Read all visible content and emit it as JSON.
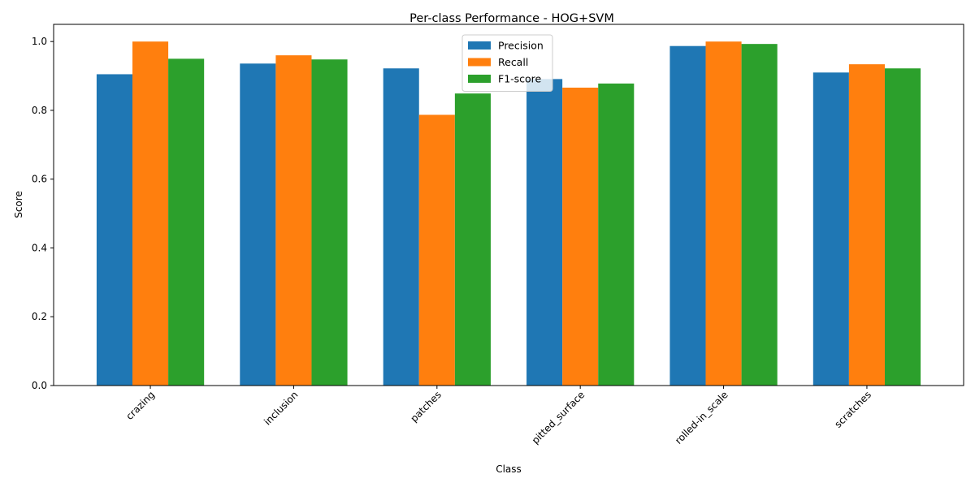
{
  "chart_data": {
    "type": "bar",
    "title": "Per-class Performance - HOG+SVM",
    "xlabel": "Class",
    "ylabel": "Score",
    "ylim": [
      0,
      1.05
    ],
    "yticks": [
      "0.0",
      "0.2",
      "0.4",
      "0.6",
      "0.8",
      "1.0"
    ],
    "grid": false,
    "legend_position": "top-center",
    "categories": [
      "crazing",
      "inclusion",
      "patches",
      "pitted_surface",
      "rolled-in_scale",
      "scratches"
    ],
    "series": [
      {
        "name": "Precision",
        "color": "#1f77b4",
        "values": [
          0.905,
          0.936,
          0.922,
          0.891,
          0.987,
          0.91
        ]
      },
      {
        "name": "Recall",
        "color": "#ff7f0e",
        "values": [
          1.0,
          0.96,
          0.787,
          0.866,
          1.0,
          0.934
        ]
      },
      {
        "name": "F1-score",
        "color": "#2ca02c",
        "values": [
          0.95,
          0.948,
          0.849,
          0.878,
          0.993,
          0.922
        ]
      }
    ]
  }
}
